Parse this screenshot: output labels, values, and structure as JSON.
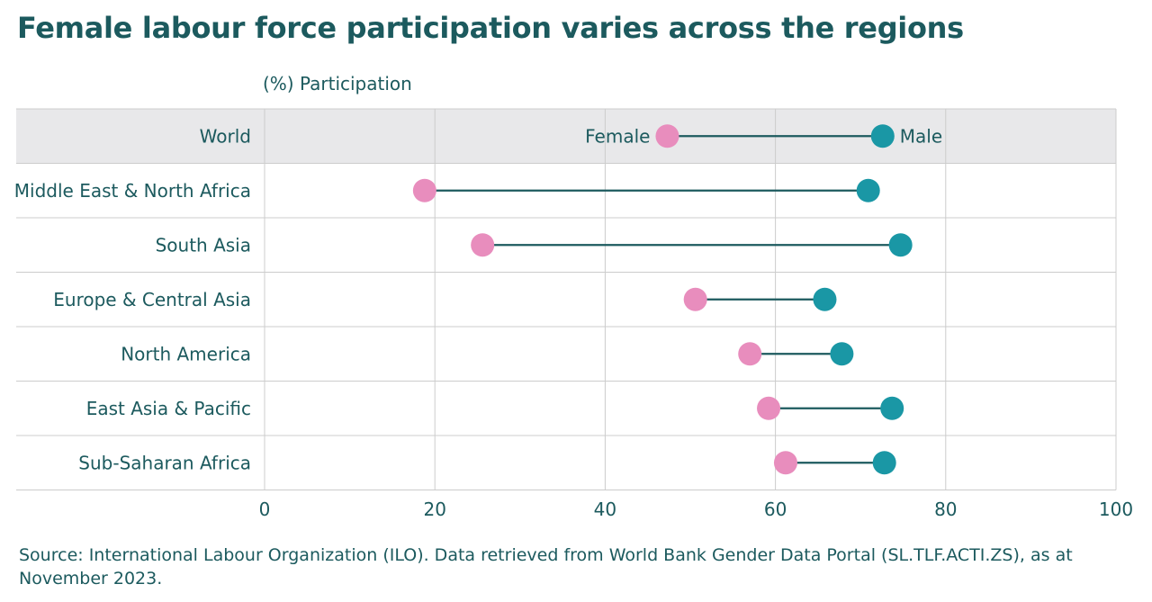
{
  "chart_data": {
    "type": "dumbbell",
    "title": "Female labour force participation varies across the regions",
    "xlabel": "(%) Participation",
    "xlim": [
      0,
      100
    ],
    "xticks": [
      "0",
      "20",
      "40",
      "60",
      "80",
      "100"
    ],
    "legend": {
      "female": "Female",
      "male": "Male",
      "placement": "inline-first-row"
    },
    "categories": [
      "World",
      "Middle East & North Africa",
      "South Asia",
      "Europe & Central Asia",
      "North America",
      "East Asia & Pacific",
      "Sub-Saharan Africa"
    ],
    "series": [
      {
        "name": "Female",
        "values": [
          47.3,
          18.8,
          25.6,
          50.6,
          57.0,
          59.2,
          61.2
        ]
      },
      {
        "name": "Male",
        "values": [
          72.6,
          70.9,
          74.7,
          65.8,
          67.8,
          73.7,
          72.8
        ]
      }
    ],
    "highlight_category": "World"
  },
  "colors": {
    "female": "#e88dbd",
    "male": "#1a97a5",
    "line": "#1c5a5e",
    "text": "#1c5a5e",
    "highlight_row": "#e8e8ea",
    "grid": "#cccccc"
  },
  "source_text": "Source: International Labour Organization (ILO). Data retrieved from World Bank Gender Data Portal (SL.TLF.ACTI.ZS), as at November 2023."
}
